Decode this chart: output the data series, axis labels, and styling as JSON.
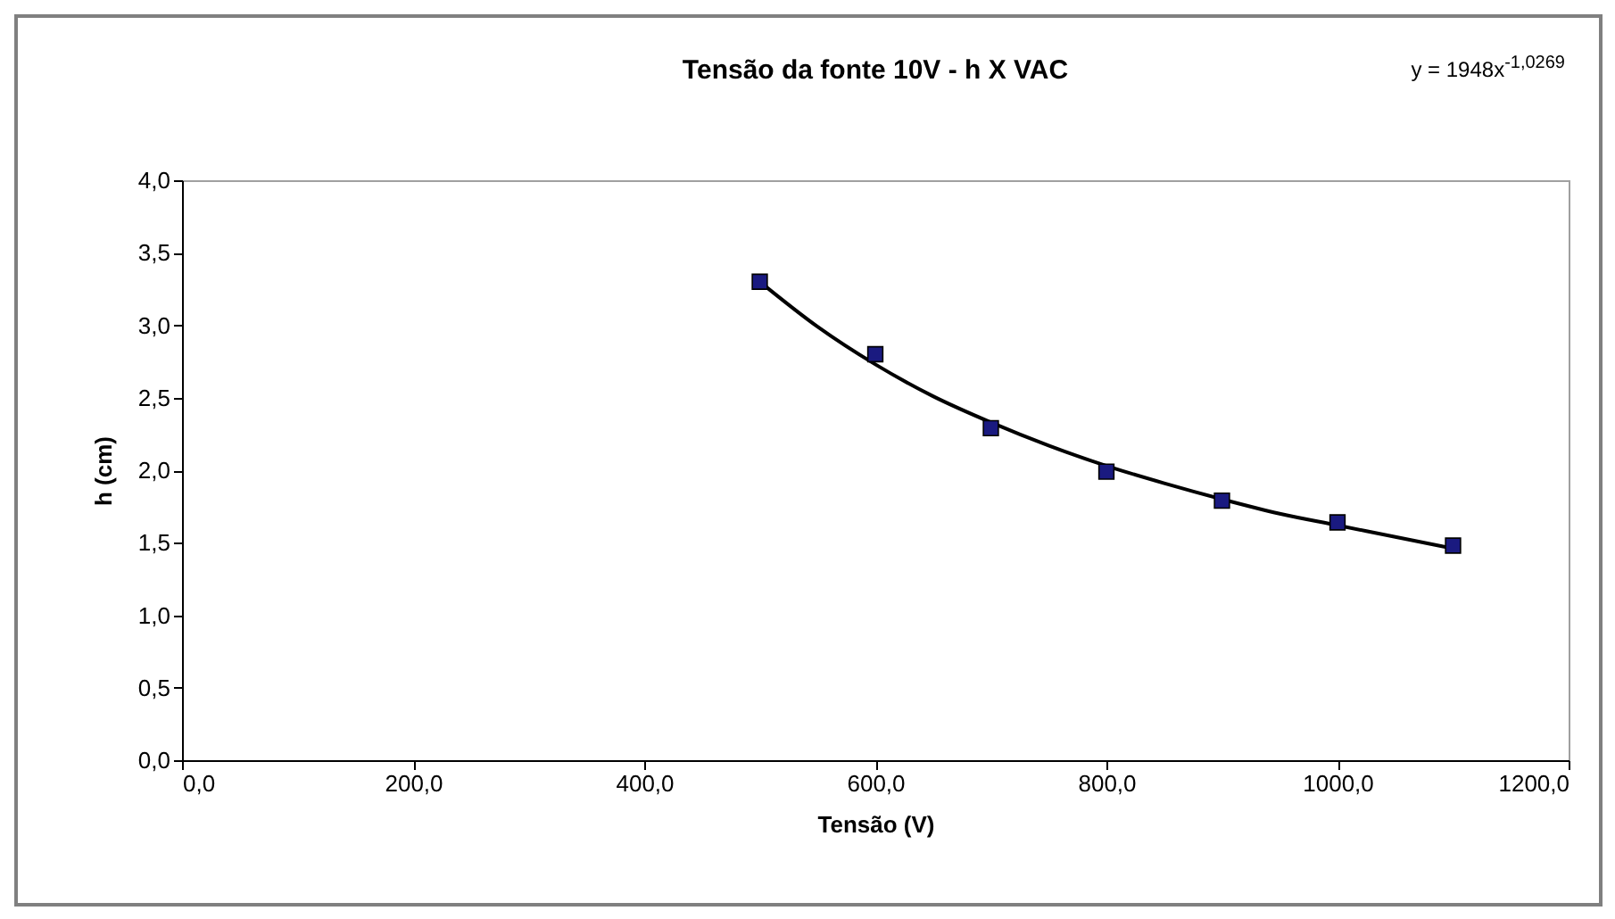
{
  "chart_data": {
    "type": "scatter",
    "title": "Tensão da fonte 10V - h X VAC",
    "xlabel": "Tensão (V)",
    "ylabel": "h (cm)",
    "annotations": [
      "y = 1948x$^{-1,0269}$"
    ],
    "x": [
      500,
      600,
      700,
      800,
      900,
      1000,
      1100
    ],
    "series": [
      {
        "color": "#1a1a80",
        "values": [
          3.3,
          2.8,
          2.29,
          1.99,
          1.79,
          1.64,
          1.48
        ]
      },
      {
        "type": "line",
        "marker": "none",
        "color": "#000000",
        "x": [
          500,
          550,
          600,
          650,
          700,
          750,
          800,
          850,
          900,
          950,
          1000,
          1050,
          1100
        ],
        "values": [
          3.3,
          2.99,
          2.73,
          2.51,
          2.33,
          2.17,
          2.03,
          1.91,
          1.8,
          1.7,
          1.62,
          1.54,
          1.46
        ]
      }
    ],
    "xlim": [
      0,
      1200
    ],
    "ylim": [
      0,
      4
    ],
    "xticks": [
      {
        "value": 0,
        "label": "0,0"
      },
      {
        "value": 200,
        "label": "200,0"
      },
      {
        "value": 400,
        "label": "400,0"
      },
      {
        "value": 600,
        "label": "600,0"
      },
      {
        "value": 800,
        "label": "800,0"
      },
      {
        "value": 1000,
        "label": "1000,0"
      },
      {
        "value": 1200,
        "label": "1200,0"
      }
    ],
    "yticks": [
      {
        "value": 0,
        "label": "0,0"
      },
      {
        "value": 0.5,
        "label": "0,5"
      },
      {
        "value": 1,
        "label": "1,0"
      },
      {
        "value": 1.5,
        "label": "1,5"
      },
      {
        "value": 2,
        "label": "2,0"
      },
      {
        "value": 2.5,
        "label": "2,5"
      },
      {
        "value": 3,
        "label": "3,0"
      },
      {
        "value": 3.5,
        "label": "3,5"
      },
      {
        "value": 4,
        "label": "4,0"
      }
    ],
    "grid": false,
    "marker": "square"
  }
}
